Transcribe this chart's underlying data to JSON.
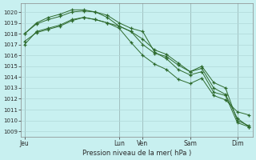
{
  "xlabel": "Pression niveau de la mer( hPa )",
  "bg_color": "#c8f0f0",
  "grid_color": "#d8ecec",
  "line_color": "#2d6a2d",
  "ylim": [
    1008.5,
    1020.8
  ],
  "yticks": [
    1009,
    1010,
    1011,
    1012,
    1013,
    1014,
    1015,
    1016,
    1017,
    1018,
    1019,
    1020
  ],
  "xlim": [
    -0.3,
    19.3
  ],
  "day_labels": [
    "Jeu",
    "Lun",
    "Ven",
    "Sam",
    "Dim"
  ],
  "day_positions": [
    0.0,
    8.0,
    10.0,
    14.0,
    18.0
  ],
  "series": [
    [
      1017.3,
      1018.1,
      1018.4,
      1018.7,
      1019.2,
      1019.5,
      1019.3,
      1019.0,
      1018.7,
      1018.2,
      1017.0,
      1016.2,
      1015.9,
      1015.1,
      1014.5,
      1015.0,
      1013.5,
      1013.0,
      1010.0,
      1009.5
    ],
    [
      1018.0,
      1018.9,
      1019.3,
      1019.6,
      1020.0,
      1020.1,
      1020.0,
      1019.7,
      1019.0,
      1018.5,
      1018.2,
      1016.3,
      1015.7,
      1014.7,
      1014.2,
      1014.5,
      1012.6,
      1012.3,
      1009.8,
      1009.4
    ],
    [
      1018.0,
      1019.0,
      1019.5,
      1019.8,
      1020.2,
      1020.2,
      1020.0,
      1019.5,
      1018.7,
      1018.2,
      1017.5,
      1016.5,
      1016.1,
      1015.3,
      1014.5,
      1014.8,
      1013.0,
      1012.4,
      1010.2,
      1009.4
    ],
    [
      1017.0,
      1018.2,
      1018.5,
      1018.8,
      1019.3,
      1019.5,
      1019.3,
      1019.0,
      1018.5,
      1017.2,
      1016.0,
      1015.2,
      1014.7,
      1013.8,
      1013.4,
      1013.9,
      1012.3,
      1011.9,
      1010.8,
      1010.5
    ]
  ]
}
